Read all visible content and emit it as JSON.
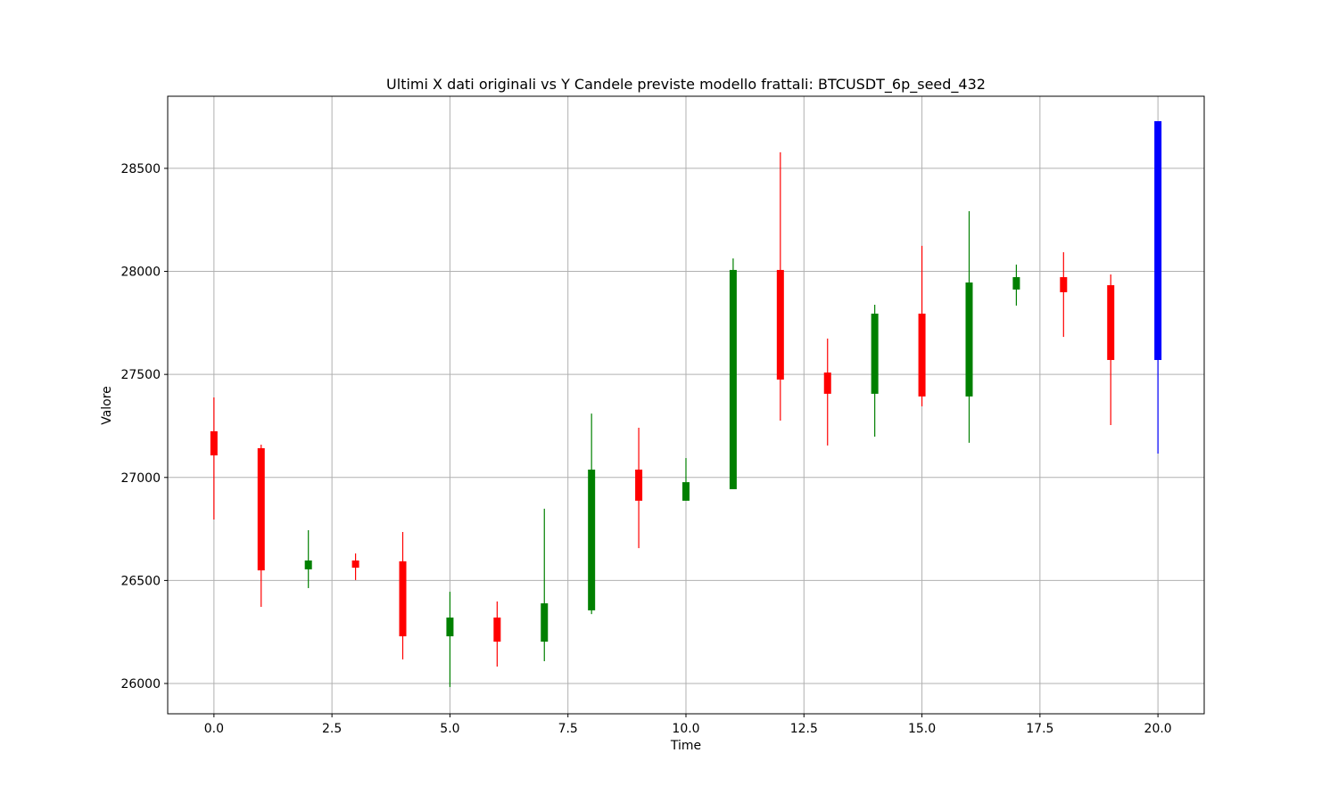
{
  "chart_data": {
    "type": "candlestick",
    "title": "Ultimi X dati originali vs Y Candele previste modello frattali: BTCUSDT_6p_seed_432",
    "xlabel": "Time",
    "ylabel": "Valore",
    "x": [
      0,
      1,
      2,
      3,
      4,
      5,
      6,
      7,
      8,
      9,
      10,
      11,
      12,
      13,
      14,
      15,
      16,
      17,
      18,
      19,
      20
    ],
    "open": [
      27224,
      27142,
      26554,
      26597,
      26593,
      26229,
      26320,
      26203,
      26355,
      27038,
      26887,
      26943,
      28007,
      27509,
      27406,
      27795,
      27393,
      27912,
      27972,
      27933,
      27570
    ],
    "high": [
      27388,
      27159,
      26744,
      26631,
      26735,
      26445,
      26398,
      26848,
      27310,
      27241,
      27094,
      28063,
      28578,
      27674,
      27838,
      28124,
      28292,
      28033,
      28093,
      27985,
      28729
    ],
    "low": [
      26796,
      26372,
      26463,
      26502,
      26117,
      25983,
      26082,
      26108,
      26337,
      26657,
      26887,
      26943,
      27276,
      27155,
      27198,
      27345,
      27168,
      27834,
      27682,
      27254,
      27116
    ],
    "close": [
      27107,
      26549,
      26597,
      26562,
      26229,
      26320,
      26203,
      26389,
      27038,
      26887,
      26977,
      28007,
      27475,
      27406,
      27795,
      27393,
      27946,
      27972,
      27899,
      27570,
      28729
    ],
    "colors": [
      "red",
      "red",
      "green",
      "red",
      "red",
      "green",
      "red",
      "green",
      "green",
      "red",
      "green",
      "green",
      "red",
      "red",
      "green",
      "red",
      "green",
      "green",
      "red",
      "red",
      "blue"
    ],
    "xlim": [
      -0.98,
      20.98
    ],
    "ylim": [
      25853,
      28850
    ],
    "xticks": [
      {
        "value": 0,
        "label": "0.0"
      },
      {
        "value": 2.5,
        "label": "2.5"
      },
      {
        "value": 5,
        "label": "5.0"
      },
      {
        "value": 7.5,
        "label": "7.5"
      },
      {
        "value": 10,
        "label": "10.0"
      },
      {
        "value": 12.5,
        "label": "12.5"
      },
      {
        "value": 15,
        "label": "15.0"
      },
      {
        "value": 17.5,
        "label": "17.5"
      },
      {
        "value": 20,
        "label": "20.0"
      }
    ],
    "yticks": [
      26000,
      26500,
      27000,
      27500,
      28000,
      28500
    ],
    "grid": true
  }
}
